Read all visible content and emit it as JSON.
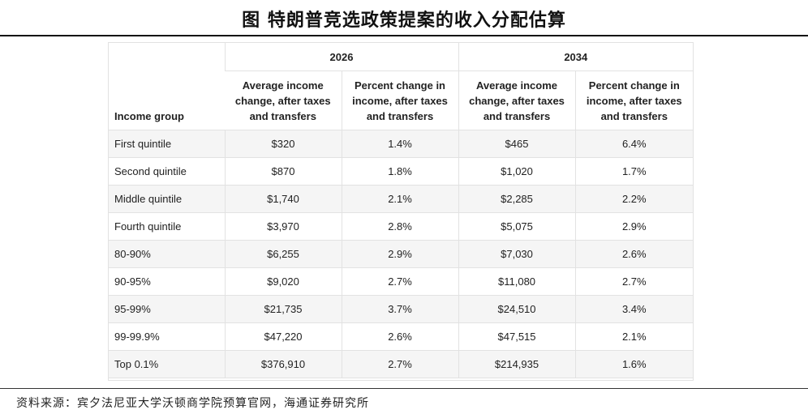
{
  "title": "图 特朗普竞选政策提案的收入分配估算",
  "table": {
    "group_header": "Income group",
    "years": [
      "2026",
      "2034"
    ],
    "subheaders": [
      "Average income change, after taxes and transfers",
      "Percent change in income, after taxes and transfers",
      "Average income change, after taxes and transfers",
      "Percent change in income, after taxes and transfers"
    ],
    "rows": [
      [
        "First quintile",
        "$320",
        "1.4%",
        "$465",
        "6.4%"
      ],
      [
        "Second quintile",
        "$870",
        "1.8%",
        "$1,020",
        "1.7%"
      ],
      [
        "Middle quintile",
        "$1,740",
        "2.1%",
        "$2,285",
        "2.2%"
      ],
      [
        "Fourth quintile",
        "$3,970",
        "2.8%",
        "$5,075",
        "2.9%"
      ],
      [
        "80-90%",
        "$6,255",
        "2.9%",
        "$7,030",
        "2.6%"
      ],
      [
        "90-95%",
        "$9,020",
        "2.7%",
        "$11,080",
        "2.7%"
      ],
      [
        "95-99%",
        "$21,735",
        "3.7%",
        "$24,510",
        "3.4%"
      ],
      [
        "99-99.9%",
        "$47,220",
        "2.6%",
        "$47,515",
        "2.1%"
      ],
      [
        "Top 0.1%",
        "$376,910",
        "2.7%",
        "$214,935",
        "1.6%"
      ]
    ]
  },
  "source": "资料来源：宾夕法尼亚大学沃顿商学院预算官网，海通证券研究所",
  "colors": {
    "stripe": "#f5f5f5",
    "border": "#e2e2e2",
    "rule": "#111111"
  }
}
